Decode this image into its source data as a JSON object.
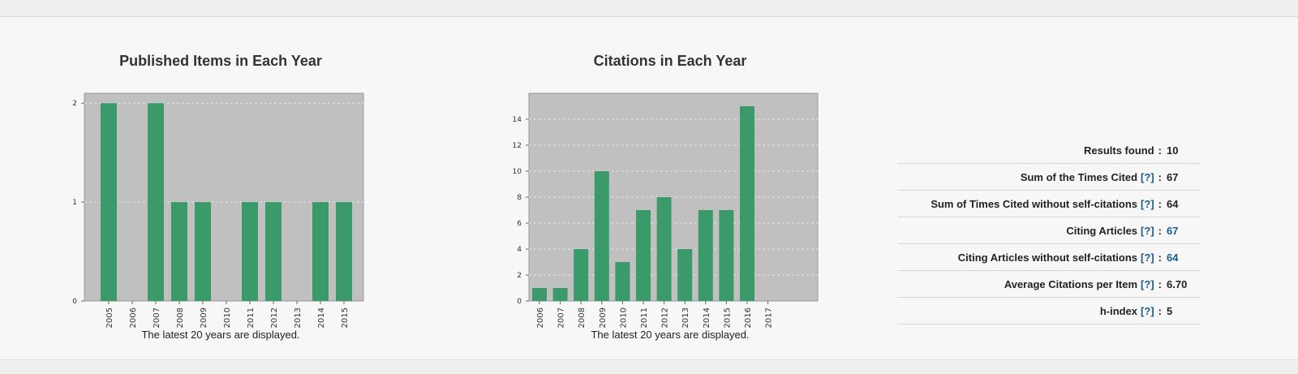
{
  "charts": [
    {
      "id": "published",
      "title": "Published Items in Each Year",
      "caption": "The latest 20 years are displayed.",
      "chart_data": {
        "type": "bar",
        "title": "Published Items in Each Year",
        "categories": [
          "2005",
          "2006",
          "2007",
          "2008",
          "2009",
          "2010",
          "2011",
          "2012",
          "2013",
          "2014",
          "2015"
        ],
        "values": [
          2,
          0,
          2,
          1,
          1,
          0,
          1,
          1,
          0,
          1,
          1
        ],
        "yticks": [
          0,
          1,
          2
        ],
        "ylim": [
          0,
          2.1
        ],
        "bar_color": "#3a9a6a",
        "plot_bg": "#c0c0c0",
        "grid": true
      }
    },
    {
      "id": "citations",
      "title": "Citations in Each Year",
      "caption": "The latest 20 years are displayed.",
      "chart_data": {
        "type": "bar",
        "title": "Citations in Each Year",
        "categories": [
          "2006",
          "2007",
          "2008",
          "2009",
          "2010",
          "2011",
          "2012",
          "2013",
          "2014",
          "2015",
          "2016",
          "2017"
        ],
        "values": [
          1,
          1,
          4,
          10,
          3,
          7,
          8,
          4,
          7,
          7,
          15,
          0
        ],
        "yticks": [
          0,
          2,
          4,
          6,
          8,
          10,
          12,
          14
        ],
        "ylim": [
          0,
          16
        ],
        "bar_color": "#3a9a6a",
        "plot_bg": "#c0c0c0",
        "grid": true
      }
    }
  ],
  "metrics": [
    {
      "label": "Results found",
      "help": "",
      "value": "10",
      "link": false
    },
    {
      "label": "Sum of the Times Cited",
      "help": "[?]",
      "value": "67",
      "link": false
    },
    {
      "label": "Sum of Times Cited without self-citations",
      "help": "[?]",
      "value": "64",
      "link": false
    },
    {
      "label": "Citing Articles",
      "help": "[?]",
      "value": "67",
      "link": true
    },
    {
      "label": "Citing Articles without self-citations",
      "help": "[?]",
      "value": "64",
      "link": true
    },
    {
      "label": "Average Citations per Item",
      "help": "[?]",
      "value": "6.70",
      "link": false
    },
    {
      "label": "h-index",
      "help": "[?]",
      "value": "5",
      "link": false
    }
  ]
}
